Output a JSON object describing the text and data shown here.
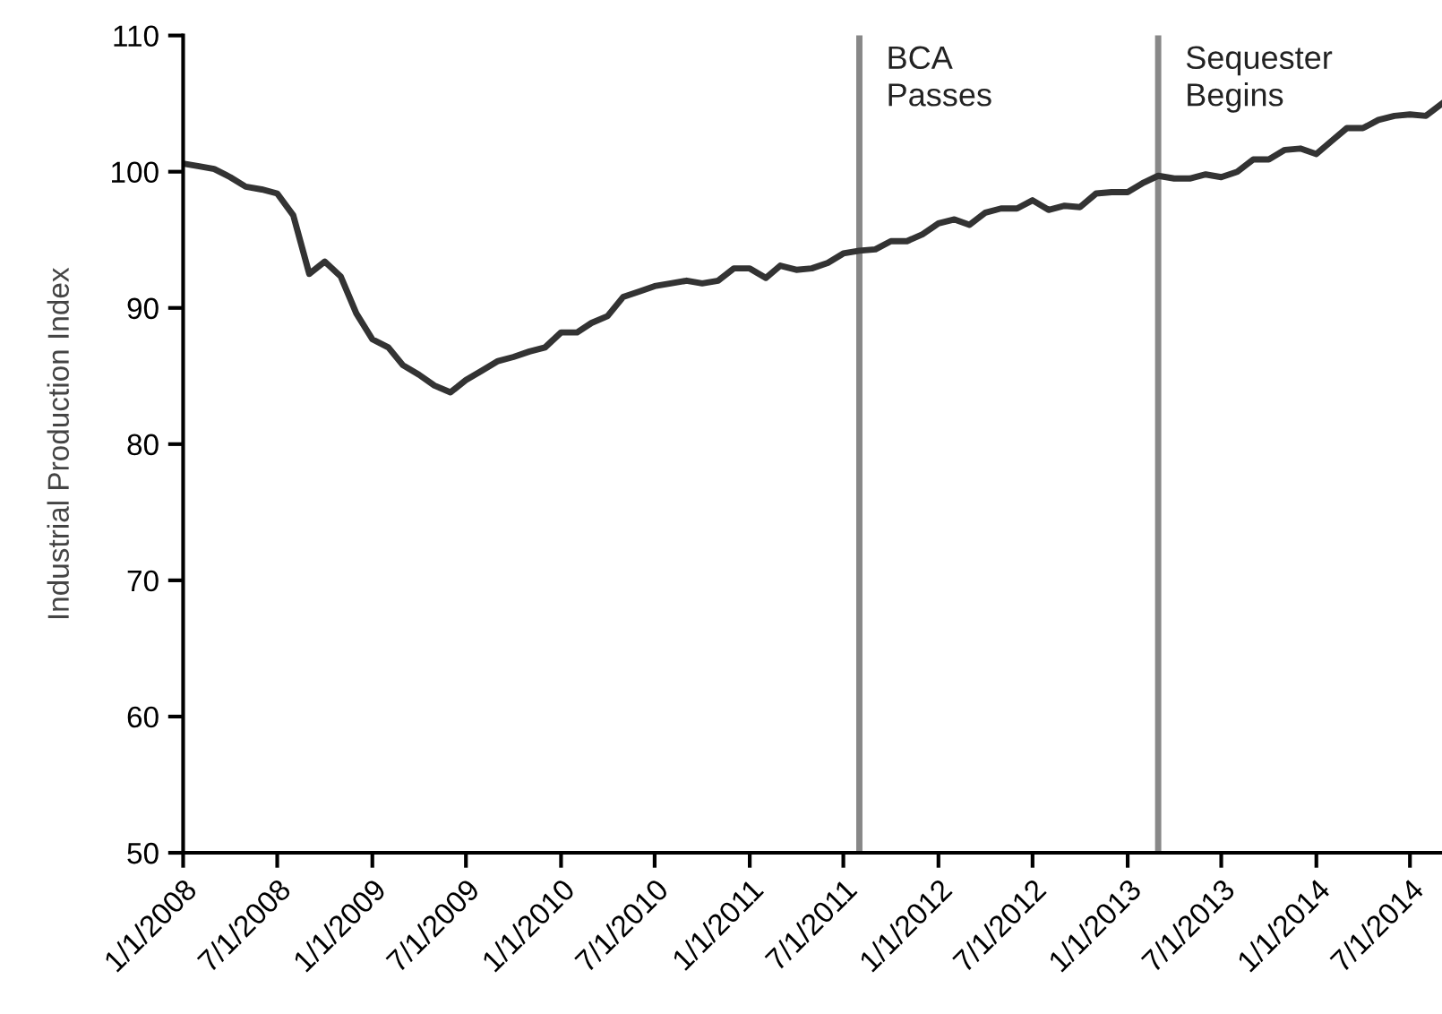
{
  "chart_data": {
    "type": "line",
    "ylabel": "Industrial Production Index",
    "x": [
      "2008-01",
      "2008-02",
      "2008-03",
      "2008-04",
      "2008-05",
      "2008-06",
      "2008-07",
      "2008-08",
      "2008-09",
      "2008-10",
      "2008-11",
      "2008-12",
      "2009-01",
      "2009-02",
      "2009-03",
      "2009-04",
      "2009-05",
      "2009-06",
      "2009-07",
      "2009-08",
      "2009-09",
      "2009-10",
      "2009-11",
      "2009-12",
      "2010-01",
      "2010-02",
      "2010-03",
      "2010-04",
      "2010-05",
      "2010-06",
      "2010-07",
      "2010-08",
      "2010-09",
      "2010-10",
      "2010-11",
      "2010-12",
      "2011-01",
      "2011-02",
      "2011-03",
      "2011-04",
      "2011-05",
      "2011-06",
      "2011-07",
      "2011-08",
      "2011-09",
      "2011-10",
      "2011-11",
      "2011-12",
      "2012-01",
      "2012-02",
      "2012-03",
      "2012-04",
      "2012-05",
      "2012-06",
      "2012-07",
      "2012-08",
      "2012-09",
      "2012-10",
      "2012-11",
      "2012-12",
      "2013-01",
      "2013-02",
      "2013-03",
      "2013-04",
      "2013-05",
      "2013-06",
      "2013-07",
      "2013-08",
      "2013-09",
      "2013-10",
      "2013-11",
      "2013-12",
      "2014-01",
      "2014-02",
      "2014-03",
      "2014-04",
      "2014-05",
      "2014-06",
      "2014-07",
      "2014-08",
      "2014-09"
    ],
    "series": [
      {
        "color": "#333333",
        "values": [
          100.6,
          100.4,
          100.2,
          99.6,
          98.9,
          98.7,
          98.4,
          96.8,
          92.5,
          93.4,
          92.3,
          89.6,
          87.7,
          87.1,
          85.8,
          85.1,
          84.3,
          83.8,
          84.7,
          85.4,
          86.1,
          86.4,
          86.8,
          87.1,
          88.2,
          88.2,
          88.9,
          89.4,
          90.8,
          91.2,
          91.6,
          91.8,
          92.0,
          91.8,
          92.0,
          92.9,
          92.9,
          92.2,
          93.1,
          92.8,
          92.9,
          93.3,
          94.0,
          94.2,
          94.3,
          94.9,
          94.9,
          95.4,
          96.2,
          96.5,
          96.1,
          97.0,
          97.3,
          97.3,
          97.9,
          97.2,
          97.5,
          97.4,
          98.4,
          98.5,
          98.5,
          99.2,
          99.7,
          99.5,
          99.5,
          99.8,
          99.6,
          100.0,
          100.9,
          100.9,
          101.6,
          101.7,
          101.3,
          102.3,
          103.2,
          103.2,
          103.8,
          104.1,
          104.2,
          104.1,
          105.0
        ]
      }
    ],
    "xlim": [
      "2008-01-01",
      "2014-09-01"
    ],
    "xticks": [
      {
        "value": "2008-01-01",
        "label": "1/1/2008"
      },
      {
        "value": "2008-07-01",
        "label": "7/1/2008"
      },
      {
        "value": "2009-01-01",
        "label": "1/1/2009"
      },
      {
        "value": "2009-07-01",
        "label": "7/1/2009"
      },
      {
        "value": "2010-01-01",
        "label": "1/1/2010"
      },
      {
        "value": "2010-07-01",
        "label": "7/1/2010"
      },
      {
        "value": "2011-01-01",
        "label": "1/1/2011"
      },
      {
        "value": "2011-07-01",
        "label": "7/1/2011"
      },
      {
        "value": "2012-01-01",
        "label": "1/1/2012"
      },
      {
        "value": "2012-07-01",
        "label": "7/1/2012"
      },
      {
        "value": "2013-01-01",
        "label": "1/1/2013"
      },
      {
        "value": "2013-07-01",
        "label": "7/1/2013"
      },
      {
        "value": "2014-01-01",
        "label": "1/1/2014"
      },
      {
        "value": "2014-07-01",
        "label": "7/1/2014"
      }
    ],
    "ylim": [
      50,
      110
    ],
    "yticks": [
      50,
      60,
      70,
      80,
      90,
      100,
      110
    ],
    "ref_lines": [
      {
        "axis": "x",
        "value": "2011-08-01",
        "label": "BCA\nPasses",
        "color": "#888888"
      },
      {
        "axis": "x",
        "value": "2013-03-01",
        "label": "Sequester\nBegins",
        "color": "#888888"
      }
    ],
    "grid": false,
    "legend": false,
    "marker": "none",
    "line_style": "solid"
  }
}
